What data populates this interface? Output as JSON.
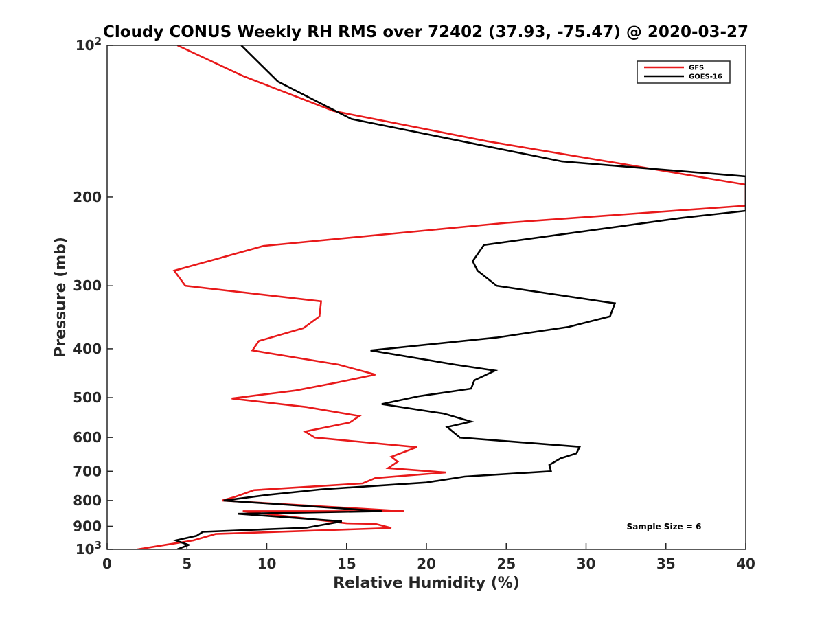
{
  "colors": {
    "gfs": "#e8191a",
    "goes": "#000000",
    "axis": "#262626"
  },
  "chart_data": {
    "type": "line",
    "orientation": "vertical-profile",
    "title": "Cloudy CONUS Weekly RH RMS over 72402 (37.93, -75.47) @ 2020-03-27",
    "xlabel": "Relative Humidity (%)",
    "ylabel": "Pressure (mb)",
    "xlim": [
      0,
      40
    ],
    "ylim": [
      100,
      1000
    ],
    "yscale": "log",
    "y_reversed": true,
    "grid": false,
    "legend_position": "top-right",
    "x_ticks": [
      "0",
      "5",
      "10",
      "15",
      "20",
      "25",
      "30",
      "35",
      "40"
    ],
    "y_ticks": [
      {
        "value": 100,
        "label": "10",
        "exponent": "2"
      },
      {
        "value": 200,
        "label": "200"
      },
      {
        "value": 300,
        "label": "300"
      },
      {
        "value": 400,
        "label": "400"
      },
      {
        "value": 500,
        "label": "500"
      },
      {
        "value": 600,
        "label": "600"
      },
      {
        "value": 700,
        "label": "700"
      },
      {
        "value": 800,
        "label": "800"
      },
      {
        "value": 900,
        "label": "900"
      },
      {
        "value": 1000,
        "label": "10",
        "exponent": "3"
      }
    ],
    "annotation": "Sample Size = 6",
    "series": [
      {
        "name": "GFS",
        "color": "#e8191a",
        "points": [
          [
            4.4,
            100
          ],
          [
            8.5,
            115
          ],
          [
            14.2,
            135
          ],
          [
            23.8,
            155
          ],
          [
            40,
            189
          ],
          [
            40,
            208
          ],
          [
            25,
            225
          ],
          [
            9.8,
            250
          ],
          [
            4.2,
            280
          ],
          [
            4.9,
            300
          ],
          [
            13.4,
            322
          ],
          [
            13.3,
            345
          ],
          [
            12.3,
            364
          ],
          [
            9.5,
            386
          ],
          [
            9.1,
            403
          ],
          [
            14.5,
            430
          ],
          [
            16.8,
            450
          ],
          [
            14.5,
            466
          ],
          [
            11.8,
            484
          ],
          [
            7.8,
            502
          ],
          [
            12.5,
            522
          ],
          [
            15.8,
            544
          ],
          [
            15.2,
            560
          ],
          [
            12.4,
            584
          ],
          [
            13,
            600
          ],
          [
            19.4,
            627
          ],
          [
            17.8,
            655
          ],
          [
            18.2,
            670
          ],
          [
            17.6,
            690
          ],
          [
            21.2,
            704
          ],
          [
            16.8,
            722
          ],
          [
            16,
            740
          ],
          [
            9.2,
            763
          ],
          [
            8,
            787
          ],
          [
            7.2,
            800
          ],
          [
            18.6,
            840
          ],
          [
            8.5,
            840
          ],
          [
            15,
            888
          ],
          [
            16.8,
            890
          ],
          [
            17.8,
            907
          ],
          [
            6.8,
            932
          ],
          [
            5.4,
            960
          ],
          [
            1.9,
            1000
          ]
        ]
      },
      {
        "name": "GOES-16",
        "color": "#000000",
        "points": [
          [
            8.4,
            100
          ],
          [
            10.7,
            118
          ],
          [
            15.3,
            140
          ],
          [
            28.5,
            170
          ],
          [
            40,
            182
          ],
          [
            40,
            213
          ],
          [
            36,
            220
          ],
          [
            23.6,
            249
          ],
          [
            22.9,
            268
          ],
          [
            23.2,
            280
          ],
          [
            24.4,
            300
          ],
          [
            31.8,
            325
          ],
          [
            31.5,
            345
          ],
          [
            28.9,
            362
          ],
          [
            24.4,
            380
          ],
          [
            16.5,
            403
          ],
          [
            21.8,
            430
          ],
          [
            24.3,
            442
          ],
          [
            23,
            462
          ],
          [
            22.8,
            480
          ],
          [
            19.5,
            497
          ],
          [
            17.2,
            515
          ],
          [
            21.1,
            538
          ],
          [
            22.8,
            558
          ],
          [
            21.3,
            572
          ],
          [
            22.1,
            600
          ],
          [
            29.6,
            626
          ],
          [
            29.4,
            645
          ],
          [
            28.4,
            660
          ],
          [
            27.7,
            680
          ],
          [
            27.8,
            700
          ],
          [
            22.4,
            717
          ],
          [
            20,
            737
          ],
          [
            13.5,
            760
          ],
          [
            10,
            780
          ],
          [
            7.3,
            800
          ],
          [
            17.2,
            840
          ],
          [
            8.2,
            850
          ],
          [
            14.7,
            880
          ],
          [
            12.5,
            906
          ],
          [
            6,
            923
          ],
          [
            5.6,
            940
          ],
          [
            4.3,
            960
          ],
          [
            5.1,
            980
          ],
          [
            4.4,
            1000
          ]
        ]
      }
    ]
  }
}
